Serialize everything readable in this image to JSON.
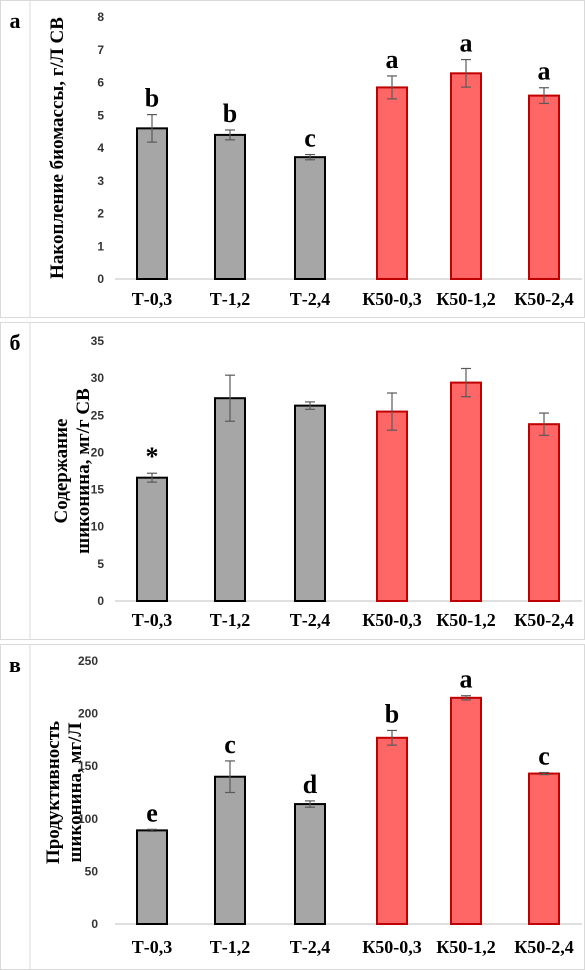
{
  "chart_data": [
    {
      "panel_label": "а",
      "type": "bar",
      "ylabel": "Накопление биомассы, г/Л СВ",
      "categories": [
        "Т-0,3",
        "Т-1,2",
        "Т-2,4",
        "К50-0,3",
        "К50-1,2",
        "К50-2,4"
      ],
      "values": [
        4.6,
        4.4,
        3.72,
        5.85,
        6.28,
        5.6
      ],
      "errors": [
        0.42,
        0.15,
        0.08,
        0.35,
        0.42,
        0.24
      ],
      "bar_colors": [
        "#a6a6a6",
        "#a6a6a6",
        "#a6a6a6",
        "#ff6666",
        "#ff6666",
        "#ff6666"
      ],
      "bar_borders": [
        "#000000",
        "#000000",
        "#000000",
        "#c00000",
        "#c00000",
        "#c00000"
      ],
      "annotations": [
        "b",
        "b",
        "c",
        "a",
        "a",
        "a"
      ],
      "ylim": [
        0,
        8
      ],
      "yticks": [
        "0",
        "1",
        "2",
        "3",
        "4",
        "5",
        "6",
        "7",
        "8"
      ],
      "grid": false
    },
    {
      "panel_label": "б",
      "type": "bar",
      "ylabel": "Содержание шиконина, мг/г СВ",
      "categories": [
        "Т-0,3",
        "Т-1,2",
        "Т-2,4",
        "К50-0,3",
        "К50-1,2",
        "К50-2,4"
      ],
      "values": [
        16.6,
        27.3,
        26.3,
        25.5,
        29.4,
        23.8
      ],
      "errors": [
        0.6,
        3.1,
        0.5,
        2.5,
        1.9,
        1.5
      ],
      "bar_colors": [
        "#a6a6a6",
        "#a6a6a6",
        "#a6a6a6",
        "#ff6666",
        "#ff6666",
        "#ff6666"
      ],
      "bar_borders": [
        "#000000",
        "#000000",
        "#000000",
        "#c00000",
        "#c00000",
        "#c00000"
      ],
      "annotations": [
        "*",
        "",
        "",
        "",
        "",
        ""
      ],
      "ylim": [
        0,
        35
      ],
      "yticks": [
        "0",
        "5",
        "10",
        "15",
        "20",
        "25",
        "30",
        "35"
      ],
      "grid": false
    },
    {
      "panel_label": "в",
      "type": "bar",
      "ylabel": "Продуктивность шиконина, мг/Л",
      "categories": [
        "Т-0,3",
        "Т-1,2",
        "Т-2,4",
        "К50-0,3",
        "К50-1,2",
        "К50-2,4"
      ],
      "values": [
        89,
        140,
        114,
        177,
        215,
        143
      ],
      "errors": [
        1,
        15,
        3,
        7,
        2,
        1
      ],
      "bar_colors": [
        "#a6a6a6",
        "#a6a6a6",
        "#a6a6a6",
        "#ff6666",
        "#ff6666",
        "#ff6666"
      ],
      "bar_borders": [
        "#000000",
        "#000000",
        "#000000",
        "#c00000",
        "#c00000",
        "#c00000"
      ],
      "annotations": [
        "e",
        "c",
        "d",
        "b",
        "a",
        "c"
      ],
      "ylim": [
        0,
        250
      ],
      "yticks": [
        "0",
        "50",
        "100",
        "150",
        "200",
        "250"
      ],
      "grid": false
    }
  ]
}
